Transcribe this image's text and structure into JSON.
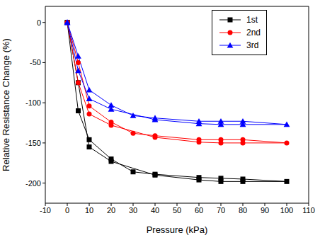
{
  "chart_data": {
    "type": "line",
    "x_label": "Pressure (kPa)",
    "y_label": "Relative Resistance Change (%)",
    "xlim": [
      -10,
      110
    ],
    "xticks": [
      -10,
      0,
      10,
      20,
      30,
      40,
      50,
      60,
      70,
      80,
      90,
      100,
      110
    ],
    "ylim": [
      -225,
      20
    ],
    "yticks": [
      -200,
      -150,
      -100,
      -50,
      0
    ],
    "grid": false,
    "legend": "top-right",
    "series": [
      {
        "name": "1st",
        "color": "#000000",
        "marker": "square",
        "x": [
          0,
          5,
          10,
          20,
          30,
          40,
          60,
          70,
          80,
          100,
          80,
          70,
          60,
          40,
          20,
          10,
          5,
          0
        ],
        "values": [
          0,
          -110,
          -146,
          -170,
          -186,
          -189,
          -193,
          -194,
          -195,
          -198,
          -198,
          -198,
          -196,
          -190,
          -173,
          -155,
          -75,
          0
        ]
      },
      {
        "name": "2nd",
        "color": "#ff0000",
        "marker": "circle",
        "x": [
          0,
          5,
          10,
          20,
          30,
          40,
          60,
          70,
          80,
          100,
          80,
          70,
          60,
          40,
          20,
          10,
          5,
          0
        ],
        "values": [
          0,
          -50,
          -104,
          -124,
          -138,
          -141,
          -146,
          -146,
          -146,
          -150,
          -150,
          -150,
          -149,
          -143,
          -128,
          -114,
          -75,
          0
        ]
      },
      {
        "name": "3rd",
        "color": "#0000ff",
        "marker": "triangle",
        "x": [
          0,
          5,
          10,
          20,
          30,
          40,
          60,
          70,
          80,
          100,
          80,
          70,
          60,
          40,
          20,
          10,
          5,
          0
        ],
        "values": [
          0,
          -42,
          -84,
          -103,
          -116,
          -119,
          -123,
          -123,
          -123,
          -127,
          -127,
          -127,
          -126,
          -121,
          -108,
          -95,
          -60,
          0
        ]
      }
    ]
  }
}
